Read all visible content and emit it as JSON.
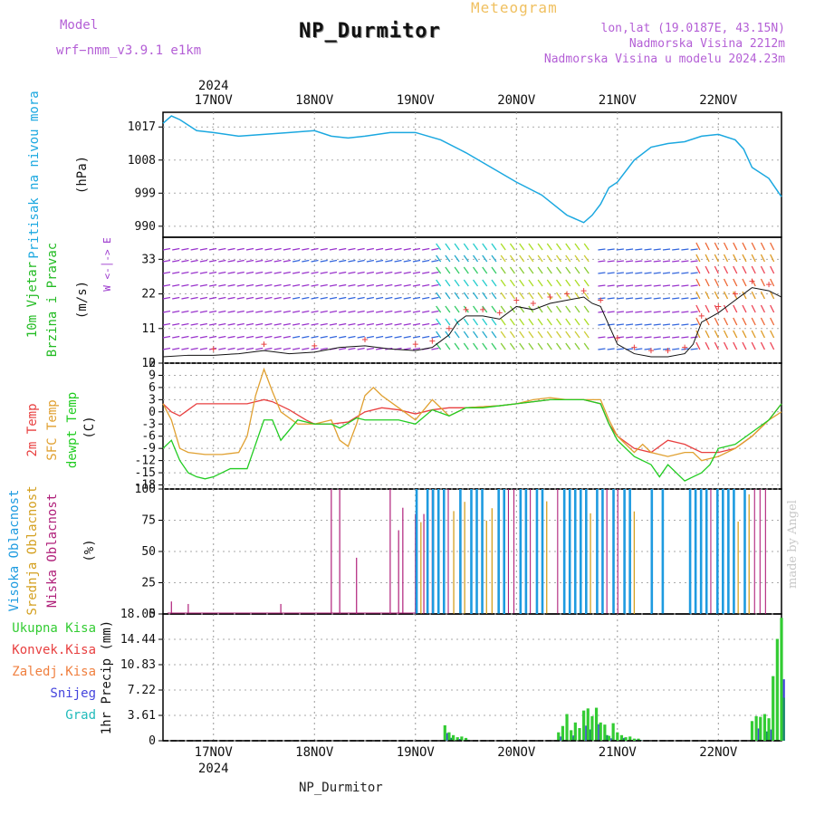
{
  "header": {
    "model_label": "Model",
    "model_name": "wrf−nmm_v3.9.1 e1km",
    "title": "NP_Durmitor",
    "meteogram_label": "Meteogram",
    "lonlat": "lon,lat (19.0187E, 43.15N)",
    "altitude": "Nadmorska Visina 2212m",
    "model_altitude": "Nadmorska Visina u modelu 2024.23m"
  },
  "footer": {
    "station": "NP_Durmitor"
  },
  "watermark": "made by Angel",
  "colors": {
    "pressure": "#1ba8e0",
    "wind_label": "#22bb22",
    "wind_purple": "#9933cc",
    "t2m": "#e84040",
    "sfc": "#e0a030",
    "dewpt": "#22cc22",
    "cloud_high": "#1e9be0",
    "cloud_mid": "#d4a020",
    "cloud_low": "#b0207a",
    "precip_total": "#33cc33",
    "precip_conv": "#e84040",
    "precip_frz": "#f08040",
    "snow": "#4444dd",
    "grad": "#22bbbb"
  },
  "chart_data": {
    "type": "meteogram",
    "x_axis": {
      "year": "2024",
      "day_labels": [
        "17NOV",
        "18NOV",
        "19NOV",
        "20NOV",
        "21NOV",
        "22NOV"
      ],
      "day_hours": [
        12,
        36,
        60,
        84,
        108,
        132
      ],
      "range_hours": [
        0,
        147
      ]
    },
    "panels": [
      {
        "id": "pressure",
        "labels": [
          "Pritisak na nivou mora"
        ],
        "unit": "(hPa)",
        "ylim": [
          987,
          1021
        ],
        "ticks": [
          990,
          999,
          1008,
          1017
        ],
        "series": [
          {
            "name": "Pritisak na nivou mora",
            "x": [
              0,
              2,
              4,
              8,
              12,
              18,
              24,
              30,
              36,
              40,
              44,
              48,
              54,
              60,
              66,
              72,
              78,
              84,
              90,
              96,
              100,
              102,
              104,
              106,
              108,
              112,
              116,
              120,
              124,
              128,
              132,
              136,
              138,
              140,
              144,
              147
            ],
            "y": [
              1018,
              1020,
              1019,
              1016,
              1015.5,
              1014.5,
              1015,
              1015.5,
              1016,
              1014.5,
              1014,
              1014.5,
              1015.5,
              1015.5,
              1013.5,
              1010,
              1006,
              1002,
              998.5,
              993,
              991,
              993,
              996,
              1000.5,
              1002,
              1008,
              1011.5,
              1012.5,
              1013,
              1014.5,
              1015,
              1013.5,
              1011,
              1006,
              1003,
              998
            ]
          }
        ]
      },
      {
        "id": "wind",
        "labels": [
          "10m Vjetar",
          "Brzina i Pravac"
        ],
        "unit": "(m/s)",
        "ylim": [
          0,
          40
        ],
        "ticks": [
          0,
          11,
          22,
          33
        ],
        "compass_legend": "W <-│-> E",
        "series": [
          {
            "name": "speed",
            "x": [
              0,
              6,
              12,
              18,
              24,
              30,
              36,
              42,
              48,
              54,
              60,
              64,
              66,
              68,
              70,
              72,
              76,
              80,
              84,
              88,
              92,
              96,
              100,
              102,
              104,
              106,
              108,
              112,
              116,
              120,
              124,
              126,
              128,
              132,
              136,
              138,
              140,
              144,
              147
            ],
            "y": [
              2,
              2.5,
              2.5,
              3,
              4,
              3,
              3.5,
              5,
              5.5,
              4.5,
              4,
              5,
              7,
              9,
              13,
              15,
              15,
              14,
              18,
              17,
              19,
              20,
              21,
              19,
              18,
              12,
              6,
              3,
              2,
              2,
              3,
              6,
              13,
              16,
              20,
              22,
              24,
              23,
              21
            ]
          }
        ]
      },
      {
        "id": "temperature",
        "labels": [
          "2m Temp",
          "SFC Temp",
          "dewpt Temp"
        ],
        "unit": "(C)",
        "ylim": [
          -19,
          12
        ],
        "ticks": [
          -18,
          -15,
          -12,
          -9,
          -6,
          -3,
          0,
          3,
          6,
          9,
          12
        ],
        "series": [
          {
            "name": "2m Temp",
            "x": [
              0,
              2,
              4,
              6,
              8,
              12,
              16,
              20,
              22,
              24,
              26,
              30,
              34,
              36,
              40,
              44,
              48,
              52,
              56,
              60,
              64,
              68,
              72,
              80,
              84,
              88,
              92,
              96,
              100,
              104,
              106,
              108,
              112,
              116,
              120,
              124,
              128,
              132,
              136,
              140,
              144,
              147
            ],
            "y": [
              2,
              0,
              -1,
              0.5,
              2,
              2,
              2,
              2,
              2.5,
              3,
              2.5,
              0.5,
              -2,
              -3,
              -3,
              -2.5,
              0,
              1,
              0.5,
              -0.5,
              0.5,
              1,
              1,
              1.5,
              2,
              2.5,
              3,
              3,
              3,
              2,
              -3,
              -6,
              -9,
              -10,
              -7,
              -8,
              -10,
              -10,
              -9,
              -6,
              -2,
              2
            ]
          },
          {
            "name": "SFC Temp",
            "x": [
              0,
              2,
              4,
              6,
              10,
              14,
              18,
              20,
              22,
              24,
              26,
              28,
              32,
              36,
              40,
              42,
              44,
              46,
              48,
              50,
              52,
              56,
              60,
              64,
              68,
              72,
              80,
              84,
              88,
              92,
              96,
              100,
              104,
              106,
              108,
              112,
              114,
              116,
              120,
              124,
              126,
              128,
              132,
              136,
              140,
              144,
              147
            ],
            "y": [
              2,
              -2,
              -9,
              -10,
              -10.5,
              -10.5,
              -10,
              -6,
              4,
              10.5,
              5,
              0,
              -3,
              -3,
              -2,
              -7,
              -8.5,
              -3,
              4,
              6,
              4,
              1,
              -2,
              3,
              -1,
              1,
              1.5,
              2,
              3,
              3.5,
              3,
              3,
              3,
              -2,
              -6,
              -10,
              -8,
              -10,
              -11,
              -10,
              -10,
              -12,
              -11,
              -9,
              -6,
              -2,
              0
            ]
          },
          {
            "name": "dewpt Temp",
            "x": [
              0,
              2,
              4,
              6,
              8,
              10,
              12,
              14,
              16,
              18,
              20,
              24,
              26,
              28,
              32,
              36,
              40,
              42,
              46,
              48,
              52,
              56,
              60,
              64,
              68,
              72,
              76,
              80,
              84,
              88,
              92,
              96,
              100,
              104,
              106,
              108,
              112,
              116,
              118,
              120,
              124,
              128,
              130,
              132,
              136,
              140,
              144,
              147
            ],
            "y": [
              -9,
              -7,
              -12,
              -15,
              -16,
              -16.5,
              -16,
              -15,
              -14,
              -14,
              -14,
              -2,
              -2,
              -7,
              -2,
              -3,
              -3,
              -4,
              -1.5,
              -2,
              -2,
              -2,
              -3,
              0.5,
              -1,
              1,
              1,
              1.5,
              2,
              2.5,
              3,
              3,
              3,
              2,
              -3,
              -7,
              -11,
              -13,
              -16,
              -13,
              -17,
              -15,
              -13,
              -9,
              -8,
              -5,
              -2,
              2
            ]
          }
        ]
      },
      {
        "id": "clouds",
        "labels": [
          "Visoka Oblacnost",
          "Srednja Oblacnost",
          "Niska Oblacnost"
        ],
        "unit": "(%)",
        "ylim": [
          0,
          100
        ],
        "ticks": [
          0,
          25,
          50,
          75,
          100
        ]
      },
      {
        "id": "precip",
        "labels": [
          "Ukupna Kisa",
          "Konvek.Kisa",
          "Zaledj.Kisa",
          "Snijeg",
          "Grad"
        ],
        "unit": "1hr Precip (mm)",
        "ylim": [
          0,
          18.05
        ],
        "ticks": [
          0,
          3.61,
          7.22,
          10.83,
          14.44,
          18.05
        ],
        "tick_labels": [
          "0",
          "3.61",
          "7.22",
          "10.83",
          "14.44",
          "18.05"
        ],
        "series": [
          {
            "name": "Ukupna Kisa",
            "x": [
              67,
              68,
              69,
              70,
              71,
              72,
              94,
              95,
              96,
              97,
              98,
              99,
              100,
              101,
              102,
              103,
              104,
              105,
              106,
              107,
              108,
              109,
              110,
              111,
              112,
              113,
              140,
              141,
              142,
              143,
              144,
              145,
              146,
              147
            ],
            "y": [
              2.2,
              1.2,
              0.8,
              0.5,
              0.6,
              0.4,
              1.2,
              2.1,
              3.8,
              1.5,
              2.6,
              1.8,
              4.3,
              4.6,
              3.5,
              4.7,
              2.6,
              2.3,
              0.7,
              2.5,
              1.2,
              0.8,
              0.5,
              0.6,
              0.3,
              0.3,
              2.8,
              3.5,
              3.4,
              3.8,
              3.2,
              9.2,
              14.5,
              17.5
            ]
          }
        ]
      }
    ]
  }
}
